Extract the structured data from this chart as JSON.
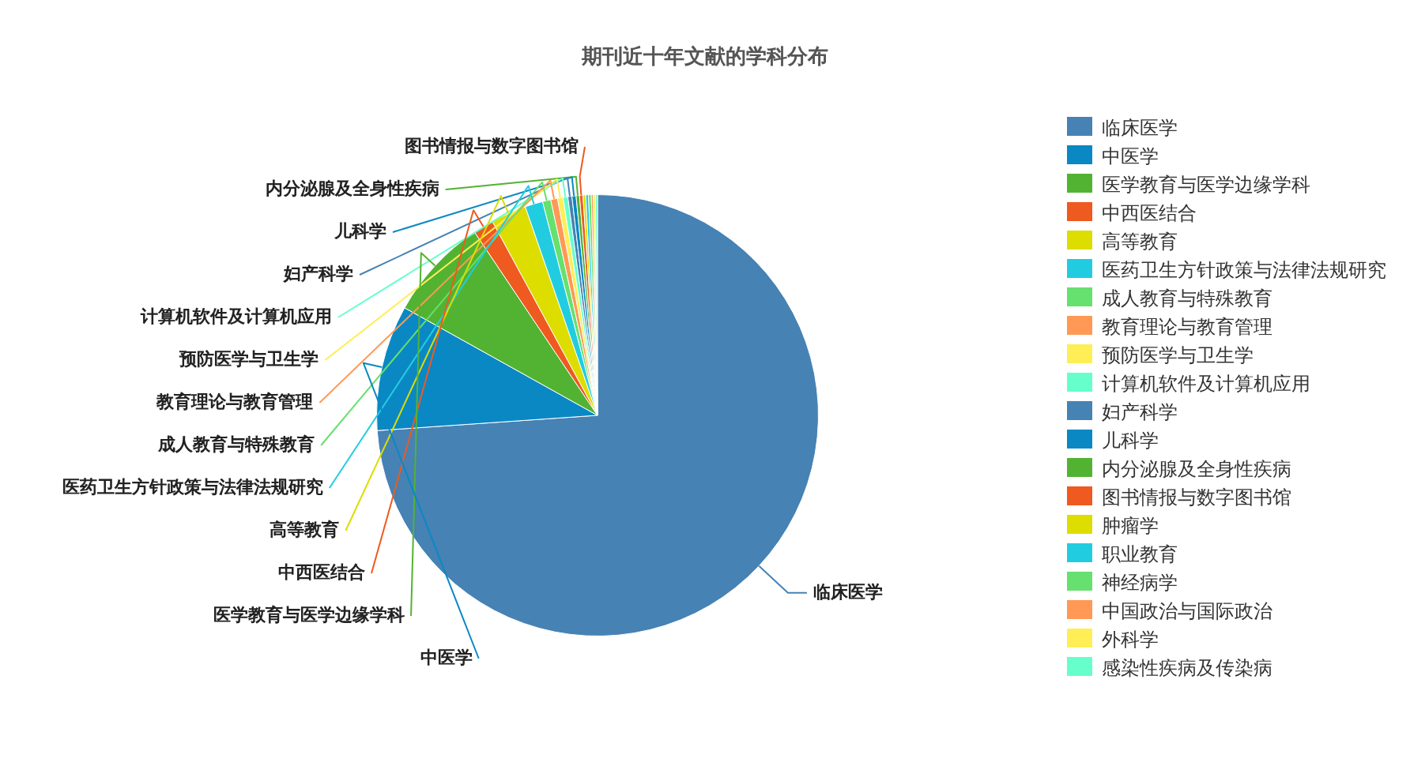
{
  "chart_data": {
    "type": "pie",
    "title": "期刊近十年文献的学科分布",
    "legend": "right",
    "categories": [
      "临床医学",
      "中医学",
      "医学教育与医学边缘学科",
      "中西医结合",
      "高等教育",
      "医药卫生方针政策与法律法规研究",
      "成人教育与特殊教育",
      "教育理论与教育管理",
      "预防医学与卫生学",
      "计算机软件及计算机应用",
      "妇产科学",
      "儿科学",
      "内分泌腺及全身性疾病",
      "图书情报与数字图书馆",
      "肿瘤学",
      "职业教育",
      "神经病学",
      "中国政治与国际政治",
      "外科学",
      "感染性疾病及传染病"
    ],
    "values": [
      73.9,
      9.2,
      7.5,
      1.5,
      2.6,
      1.3,
      0.6,
      0.5,
      0.4,
      0.35,
      0.3,
      0.3,
      0.25,
      0.25,
      0.2,
      0.2,
      0.2,
      0.15,
      0.15,
      0.15
    ],
    "colors": [
      "#4682b4",
      "#0a88c4",
      "#52b332",
      "#ee5a1f",
      "#dddd00",
      "#22cce0",
      "#66e06e",
      "#ff9955",
      "#ffee55",
      "#66ffcc",
      "#4682b4",
      "#0a88c4",
      "#52b332",
      "#ee5a1f",
      "#dddd00",
      "#22cce0",
      "#66e06e",
      "#ff9955",
      "#ffee55",
      "#66ffcc"
    ]
  }
}
